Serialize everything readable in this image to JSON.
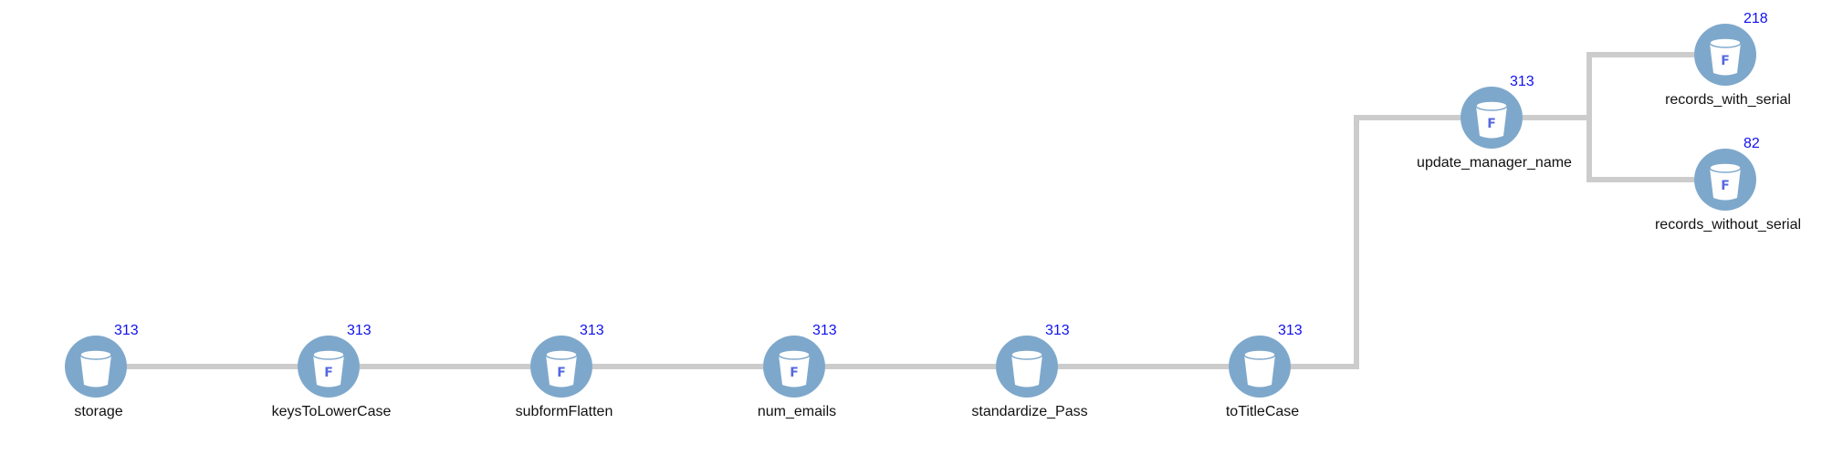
{
  "colors": {
    "node_fill": "#7ea8cb",
    "bucket_fill": "#ffffff",
    "letter": "#5468e0",
    "count": "#1111ee",
    "edge": "#cccccc"
  },
  "icons": {
    "source": "bucket-icon",
    "function": "function-bucket-icon"
  },
  "nodes": [
    {
      "id": "storage",
      "label": "storage",
      "count": "313",
      "letter": ""
    },
    {
      "id": "keysToLowerCase",
      "label": "keysToLowerCase",
      "count": "313",
      "letter": "F"
    },
    {
      "id": "subformFlatten",
      "label": "subformFlatten",
      "count": "313",
      "letter": "F"
    },
    {
      "id": "num_emails",
      "label": "num_emails",
      "count": "313",
      "letter": "F"
    },
    {
      "id": "standardize_Pass",
      "label": "standardize_Pass",
      "count": "313",
      "letter": ""
    },
    {
      "id": "toTitleCase",
      "label": "toTitleCase",
      "count": "313",
      "letter": ""
    },
    {
      "id": "update_manager_name",
      "label": "update_manager_name",
      "count": "313",
      "letter": "F"
    },
    {
      "id": "records_with_serial",
      "label": "records_with_serial",
      "count": "218",
      "letter": "F"
    },
    {
      "id": "records_without_serial",
      "label": "records_without_serial",
      "count": "82",
      "letter": "F"
    }
  ],
  "edges": [
    {
      "from": "storage",
      "to": "keysToLowerCase"
    },
    {
      "from": "keysToLowerCase",
      "to": "subformFlatten"
    },
    {
      "from": "subformFlatten",
      "to": "num_emails"
    },
    {
      "from": "num_emails",
      "to": "standardize_Pass"
    },
    {
      "from": "standardize_Pass",
      "to": "toTitleCase"
    },
    {
      "from": "toTitleCase",
      "to": "update_manager_name"
    },
    {
      "from": "update_manager_name",
      "to": "records_with_serial"
    },
    {
      "from": "update_manager_name",
      "to": "records_without_serial"
    }
  ]
}
